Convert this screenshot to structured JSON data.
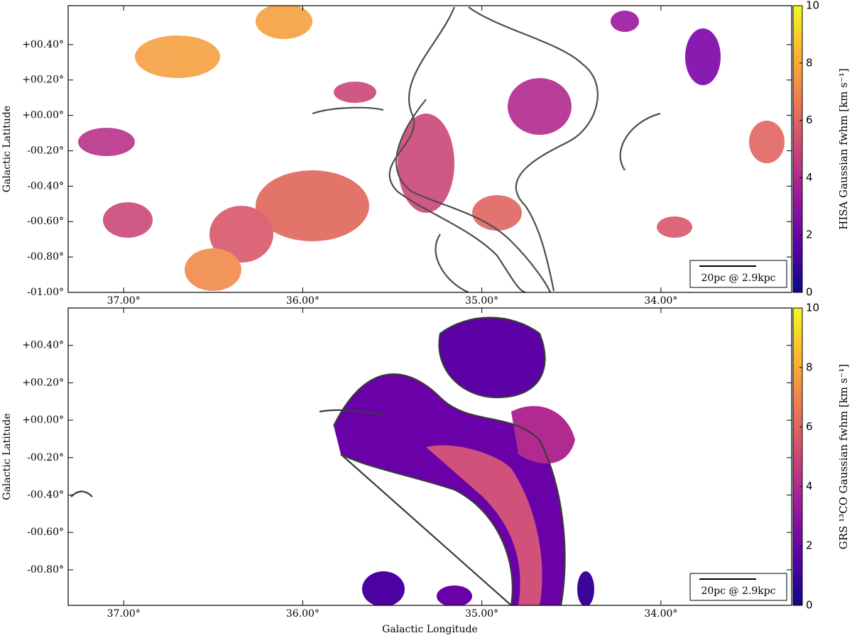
{
  "chart_data": [
    {
      "type": "image",
      "ylabel": "Galactic Latitude",
      "xlim": [
        37.31,
        33.27
      ],
      "ylim": [
        -1.0,
        0.62
      ],
      "xticks": [
        {
          "value": 37,
          "label": "37.00°"
        },
        {
          "value": 36,
          "label": "36.00°"
        },
        {
          "value": 35,
          "label": "35.00°"
        },
        {
          "value": 34,
          "label": "34.00°"
        }
      ],
      "yticks": [
        {
          "value": 0.4,
          "label": "+00.40°"
        },
        {
          "value": 0.2,
          "label": "+00.20°"
        },
        {
          "value": 0,
          "label": "+00.00°"
        },
        {
          "value": -0.2,
          "label": "-00.20°"
        },
        {
          "value": -0.4,
          "label": "-00.40°"
        },
        {
          "value": -0.6,
          "label": "-00.60°"
        },
        {
          "value": -0.8,
          "label": "-00.80°"
        },
        {
          "value": -1.0,
          "label": "-01.00°"
        }
      ],
      "scalebar": "20pc @ 2.9kpc",
      "colorbar": {
        "label": "HISA Gaussian fwhm [km s⁻¹]",
        "colormap": "plasma",
        "lim": [
          0,
          10
        ],
        "ticks": [
          0,
          2,
          4,
          6,
          8,
          10
        ]
      }
    },
    {
      "type": "image",
      "xlabel": "Galactic Longitude",
      "ylabel": "Galactic Latitude",
      "xlim": [
        37.31,
        33.27
      ],
      "ylim": [
        -0.99,
        0.6
      ],
      "xticks": [
        {
          "value": 37,
          "label": "37.00°"
        },
        {
          "value": 36,
          "label": "36.00°"
        },
        {
          "value": 35,
          "label": "35.00°"
        },
        {
          "value": 34,
          "label": "34.00°"
        }
      ],
      "yticks": [
        {
          "value": 0.4,
          "label": "+00.40°"
        },
        {
          "value": 0.2,
          "label": "+00.20°"
        },
        {
          "value": 0,
          "label": "+00.00°"
        },
        {
          "value": -0.2,
          "label": "-00.20°"
        },
        {
          "value": -0.4,
          "label": "-00.40°"
        },
        {
          "value": -0.6,
          "label": "-00.60°"
        },
        {
          "value": -0.8,
          "label": "-00.80°"
        }
      ],
      "scalebar": "20pc @ 2.9kpc",
      "colorbar": {
        "label": "GRS ¹³CO Gaussian fwhm [km s⁻¹]",
        "colormap": "plasma",
        "lim": [
          0,
          10
        ],
        "ticks": [
          0,
          2,
          4,
          6,
          8,
          10
        ]
      }
    }
  ]
}
